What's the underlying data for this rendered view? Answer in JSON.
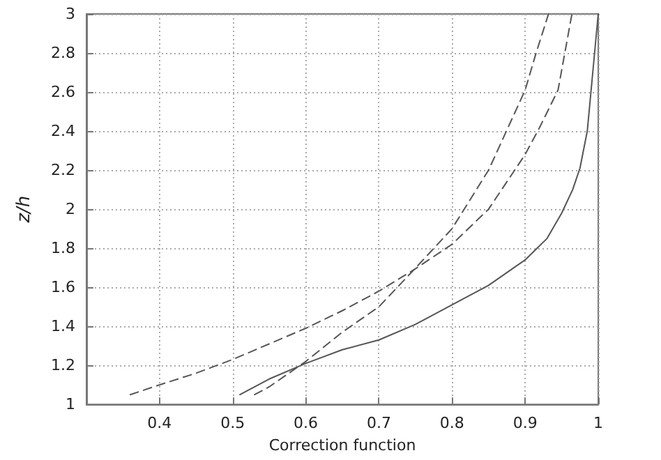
{
  "chart_data": {
    "type": "line",
    "xlabel": "Correction function",
    "ylabel": "z/h",
    "xlim": [
      0.3,
      1
    ],
    "xticks": [
      0.4,
      0.5,
      0.6,
      0.7,
      0.8,
      0.9,
      1
    ],
    "ylim": [
      1,
      3
    ],
    "yticks": [
      1,
      1.2,
      1.4,
      1.6,
      1.8,
      2,
      2.2,
      2.4,
      2.6,
      2.8,
      3
    ],
    "grid": true,
    "marker": "none",
    "series": [
      {
        "color": "#555555",
        "line_style": "solid",
        "x": [
          0.51,
          0.55,
          0.6,
          0.65,
          0.7,
          0.75,
          0.8,
          0.85,
          0.9,
          0.93,
          0.95,
          0.965,
          0.975,
          0.985,
          0.99,
          0.995,
          1
        ],
        "values": [
          1.05,
          1.13,
          1.21,
          1.28,
          1.33,
          1.41,
          1.51,
          1.61,
          1.74,
          1.85,
          1.98,
          2.1,
          2.21,
          2.4,
          2.6,
          2.8,
          3
        ]
      },
      {
        "color": "#555555",
        "line_style": "dashed",
        "x": [
          0.53,
          0.55,
          0.6,
          0.65,
          0.7,
          0.748,
          0.8,
          0.85,
          0.9,
          0.915,
          0.932
        ],
        "values": [
          1.05,
          1.09,
          1.22,
          1.37,
          1.5,
          1.69,
          1.9,
          2.2,
          2.61,
          2.8,
          3
        ]
      },
      {
        "color": "#555555",
        "line_style": "dashed",
        "x": [
          0.36,
          0.4,
          0.45,
          0.5,
          0.55,
          0.6,
          0.65,
          0.7,
          0.748,
          0.8,
          0.85,
          0.9,
          0.92,
          0.945,
          0.964
        ],
        "values": [
          1.05,
          1.1,
          1.16,
          1.23,
          1.31,
          1.39,
          1.48,
          1.58,
          1.69,
          1.82,
          2.0,
          2.28,
          2.42,
          2.61,
          3
        ]
      }
    ]
  }
}
